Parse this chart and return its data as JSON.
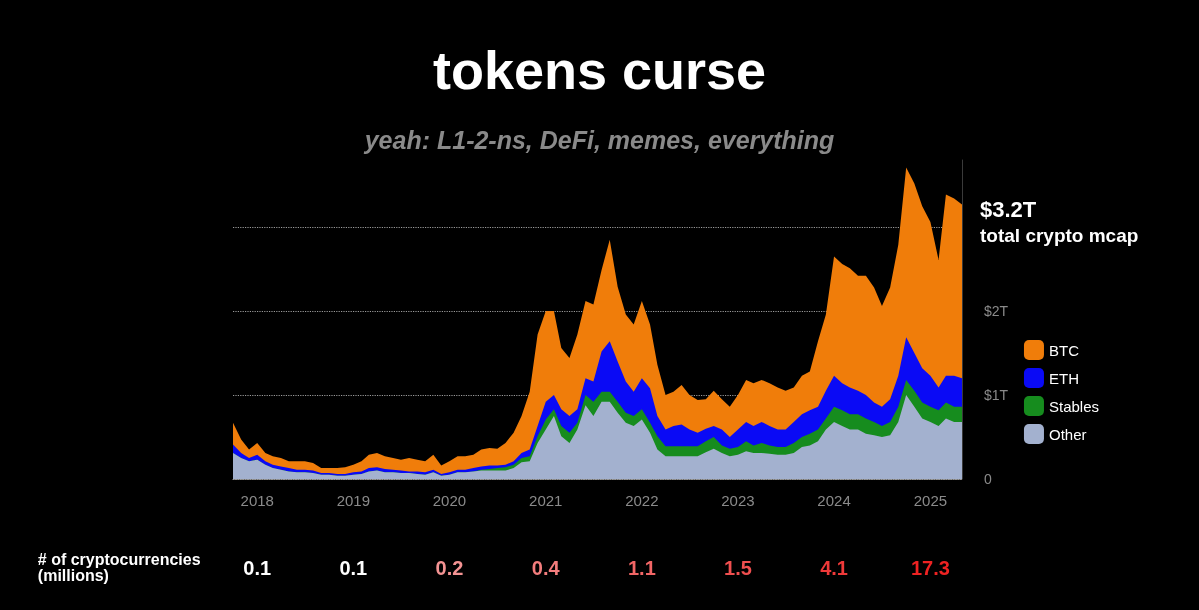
{
  "chart_data": {
    "type": "area",
    "title": "tokens curse",
    "subtitle": "yeah: L1-2-ns, DeFi, memes, everything",
    "stacked": true,
    "legend": "right",
    "grid": "y",
    "x": [
      "2017-10",
      "2017-11",
      "2017-12",
      "2018-01",
      "2018-02",
      "2018-03",
      "2018-04",
      "2018-05",
      "2018-06",
      "2018-07",
      "2018-08",
      "2018-09",
      "2018-10",
      "2018-11",
      "2018-12",
      "2019-01",
      "2019-02",
      "2019-03",
      "2019-04",
      "2019-05",
      "2019-06",
      "2019-07",
      "2019-08",
      "2019-09",
      "2019-10",
      "2019-11",
      "2019-12",
      "2020-01",
      "2020-02",
      "2020-03",
      "2020-04",
      "2020-05",
      "2020-06",
      "2020-07",
      "2020-08",
      "2020-09",
      "2020-10",
      "2020-11",
      "2020-12",
      "2021-01",
      "2021-02",
      "2021-03",
      "2021-04",
      "2021-05",
      "2021-06",
      "2021-07",
      "2021-08",
      "2021-09",
      "2021-10",
      "2021-11",
      "2021-12",
      "2022-01",
      "2022-02",
      "2022-03",
      "2022-04",
      "2022-05",
      "2022-06",
      "2022-07",
      "2022-08",
      "2022-09",
      "2022-10",
      "2022-11",
      "2022-12",
      "2023-01",
      "2023-02",
      "2023-03",
      "2023-04",
      "2023-05",
      "2023-06",
      "2023-07",
      "2023-08",
      "2023-09",
      "2023-10",
      "2023-11",
      "2023-12",
      "2024-01",
      "2024-02",
      "2024-03",
      "2024-04",
      "2024-05",
      "2024-06",
      "2024-07",
      "2024-08",
      "2024-09",
      "2024-10",
      "2024-11",
      "2024-12",
      "2025-01",
      "2025-02",
      "2025-03",
      "2025-04",
      "2025-05"
    ],
    "xlim": [
      "2017-10",
      "2025-05"
    ],
    "xticks": [
      "2018",
      "2019",
      "2020",
      "2021",
      "2022",
      "2023",
      "2024",
      "2025"
    ],
    "ylim": [
      0,
      3.8
    ],
    "yticks": [
      0,
      {
        "value": 1,
        "label": "$1T"
      },
      {
        "value": 2,
        "label": "$2T"
      },
      {
        "value": 3,
        "label": null
      }
    ],
    "series": [
      {
        "name": "Other",
        "color": "#a3b1cf",
        "values": [
          0.31,
          0.25,
          0.21,
          0.23,
          0.17,
          0.13,
          0.11,
          0.09,
          0.08,
          0.08,
          0.07,
          0.05,
          0.05,
          0.04,
          0.04,
          0.05,
          0.06,
          0.09,
          0.1,
          0.08,
          0.08,
          0.07,
          0.07,
          0.06,
          0.05,
          0.08,
          0.04,
          0.05,
          0.08,
          0.08,
          0.09,
          0.1,
          0.1,
          0.1,
          0.1,
          0.13,
          0.2,
          0.21,
          0.43,
          0.59,
          0.75,
          0.51,
          0.43,
          0.59,
          0.88,
          0.75,
          0.92,
          0.92,
          0.79,
          0.67,
          0.63,
          0.71,
          0.55,
          0.35,
          0.27,
          0.27,
          0.27,
          0.27,
          0.27,
          0.32,
          0.36,
          0.31,
          0.27,
          0.29,
          0.33,
          0.31,
          0.31,
          0.3,
          0.29,
          0.29,
          0.31,
          0.38,
          0.4,
          0.45,
          0.59,
          0.68,
          0.63,
          0.59,
          0.59,
          0.54,
          0.52,
          0.5,
          0.52,
          0.68,
          1.0,
          0.86,
          0.72,
          0.68,
          0.63,
          0.72,
          0.68,
          0.68
        ]
      },
      {
        "name": "Stables",
        "color": "#168c1e",
        "values": [
          0,
          0,
          0,
          0,
          0,
          0,
          0,
          0,
          0,
          0,
          0,
          0,
          0,
          0,
          0,
          0,
          0,
          0,
          0,
          0,
          0,
          0,
          0,
          0,
          0,
          0,
          0,
          0,
          0,
          0,
          0,
          0.01,
          0.02,
          0.03,
          0.04,
          0.04,
          0.05,
          0.06,
          0.08,
          0.12,
          0.08,
          0.12,
          0.12,
          0.08,
          0.12,
          0.17,
          0.12,
          0.12,
          0.13,
          0.12,
          0.12,
          0.12,
          0.12,
          0.16,
          0.12,
          0.12,
          0.12,
          0.12,
          0.12,
          0.13,
          0.14,
          0.09,
          0.09,
          0.09,
          0.12,
          0.09,
          0.12,
          0.1,
          0.09,
          0.09,
          0.12,
          0.12,
          0.14,
          0.14,
          0.13,
          0.18,
          0.19,
          0.18,
          0.18,
          0.18,
          0.16,
          0.13,
          0.16,
          0.18,
          0.18,
          0.19,
          0.19,
          0.18,
          0.19,
          0.19,
          0.18,
          0.18
        ]
      },
      {
        "name": "ETH",
        "color": "#0a0af5",
        "values": [
          0.1,
          0.06,
          0.04,
          0.06,
          0.04,
          0.04,
          0.04,
          0.04,
          0.03,
          0.03,
          0.03,
          0.02,
          0.02,
          0.02,
          0.02,
          0.03,
          0.03,
          0.04,
          0.04,
          0.04,
          0.03,
          0.03,
          0.02,
          0.03,
          0.03,
          0.03,
          0.02,
          0.03,
          0.03,
          0.03,
          0.04,
          0.04,
          0.04,
          0.03,
          0.03,
          0.04,
          0.06,
          0.08,
          0.12,
          0.21,
          0.17,
          0.2,
          0.2,
          0.16,
          0.2,
          0.24,
          0.48,
          0.6,
          0.48,
          0.37,
          0.29,
          0.37,
          0.41,
          0.24,
          0.2,
          0.24,
          0.26,
          0.2,
          0.16,
          0.15,
          0.13,
          0.19,
          0.14,
          0.21,
          0.23,
          0.23,
          0.25,
          0.23,
          0.21,
          0.21,
          0.25,
          0.27,
          0.28,
          0.27,
          0.33,
          0.37,
          0.32,
          0.32,
          0.28,
          0.28,
          0.23,
          0.23,
          0.27,
          0.37,
          0.51,
          0.45,
          0.41,
          0.37,
          0.27,
          0.32,
          0.37,
          0.34
        ]
      },
      {
        "name": "BTC",
        "color": "#f07d0a",
        "values": [
          0.26,
          0.16,
          0.1,
          0.14,
          0.1,
          0.1,
          0.1,
          0.08,
          0.1,
          0.1,
          0.09,
          0.06,
          0.06,
          0.07,
          0.08,
          0.09,
          0.12,
          0.16,
          0.17,
          0.15,
          0.14,
          0.13,
          0.16,
          0.14,
          0.13,
          0.18,
          0.1,
          0.13,
          0.16,
          0.16,
          0.16,
          0.2,
          0.21,
          0.2,
          0.26,
          0.34,
          0.44,
          0.69,
          1.09,
          1.08,
          1.0,
          0.73,
          0.69,
          0.89,
          0.92,
          0.92,
          0.97,
          1.21,
          0.89,
          0.8,
          0.8,
          0.92,
          0.76,
          0.61,
          0.41,
          0.41,
          0.47,
          0.41,
          0.39,
          0.35,
          0.42,
          0.36,
          0.36,
          0.41,
          0.5,
          0.51,
          0.5,
          0.51,
          0.5,
          0.46,
          0.41,
          0.46,
          0.46,
          0.78,
          0.91,
          1.42,
          1.42,
          1.42,
          1.37,
          1.42,
          1.37,
          1.2,
          1.33,
          1.56,
          2.02,
          2.02,
          1.93,
          1.83,
          1.52,
          2.16,
          2.11,
          2.07
        ]
      }
    ],
    "annotations": [
      "$3.2T",
      "total crypto mcap",
      "# of cryptocurrencies (millions)",
      "0.1",
      "0.1",
      "0.2",
      "0.4",
      "1.1",
      "1.5",
      "4.1",
      "17.3"
    ]
  }
}
